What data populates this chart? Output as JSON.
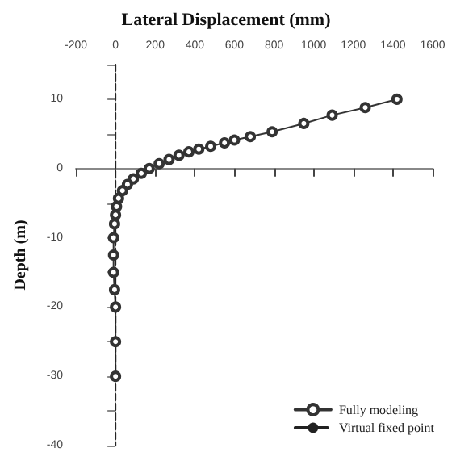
{
  "chart_data": {
    "type": "line",
    "xlabel": "Lateral Displacement (mm)",
    "ylabel": "Depth (m)",
    "xlim": [
      -200,
      1600
    ],
    "xticks": [
      -200,
      0,
      200,
      400,
      600,
      800,
      1000,
      1200,
      1400,
      1600
    ],
    "ylim": [
      -40,
      15
    ],
    "yticks": [
      {
        "value": 15,
        "label": null
      },
      10,
      {
        "value": 5,
        "label": null
      },
      0,
      {
        "value": -5,
        "label": null
      },
      -10,
      {
        "value": -15,
        "label": null
      },
      -20,
      {
        "value": -25,
        "label": null
      },
      -30,
      {
        "value": -35,
        "label": null
      },
      -40
    ],
    "grid": false,
    "legend": "bottom right",
    "series": [
      {
        "name": "Fully modeling",
        "color": "#333333",
        "marker": "circle",
        "line_style": "solid",
        "x": [
          1420,
          1260,
          1093,
          950,
          790,
          680,
          600,
          550,
          480,
          420,
          370,
          320,
          270,
          220,
          170,
          130,
          90,
          60,
          35,
          15,
          5,
          0,
          -5,
          -10,
          -10,
          -10,
          -5,
          0,
          0,
          0
        ],
        "values": [
          10,
          8.8,
          7.7,
          6.5,
          5.3,
          4.6,
          4.1,
          3.7,
          3.2,
          2.8,
          2.4,
          1.9,
          1.3,
          0.7,
          0,
          -0.7,
          -1.5,
          -2.3,
          -3.2,
          -4.3,
          -5.5,
          -6.7,
          -8,
          -10,
          -12.5,
          -15,
          -17.5,
          -20,
          -25,
          -30
        ]
      },
      {
        "name": "Virtual fixed point",
        "color": "#222222",
        "marker": "none",
        "line_style": "dashed",
        "x": [
          0,
          0
        ],
        "values": [
          15,
          -40
        ]
      }
    ]
  }
}
